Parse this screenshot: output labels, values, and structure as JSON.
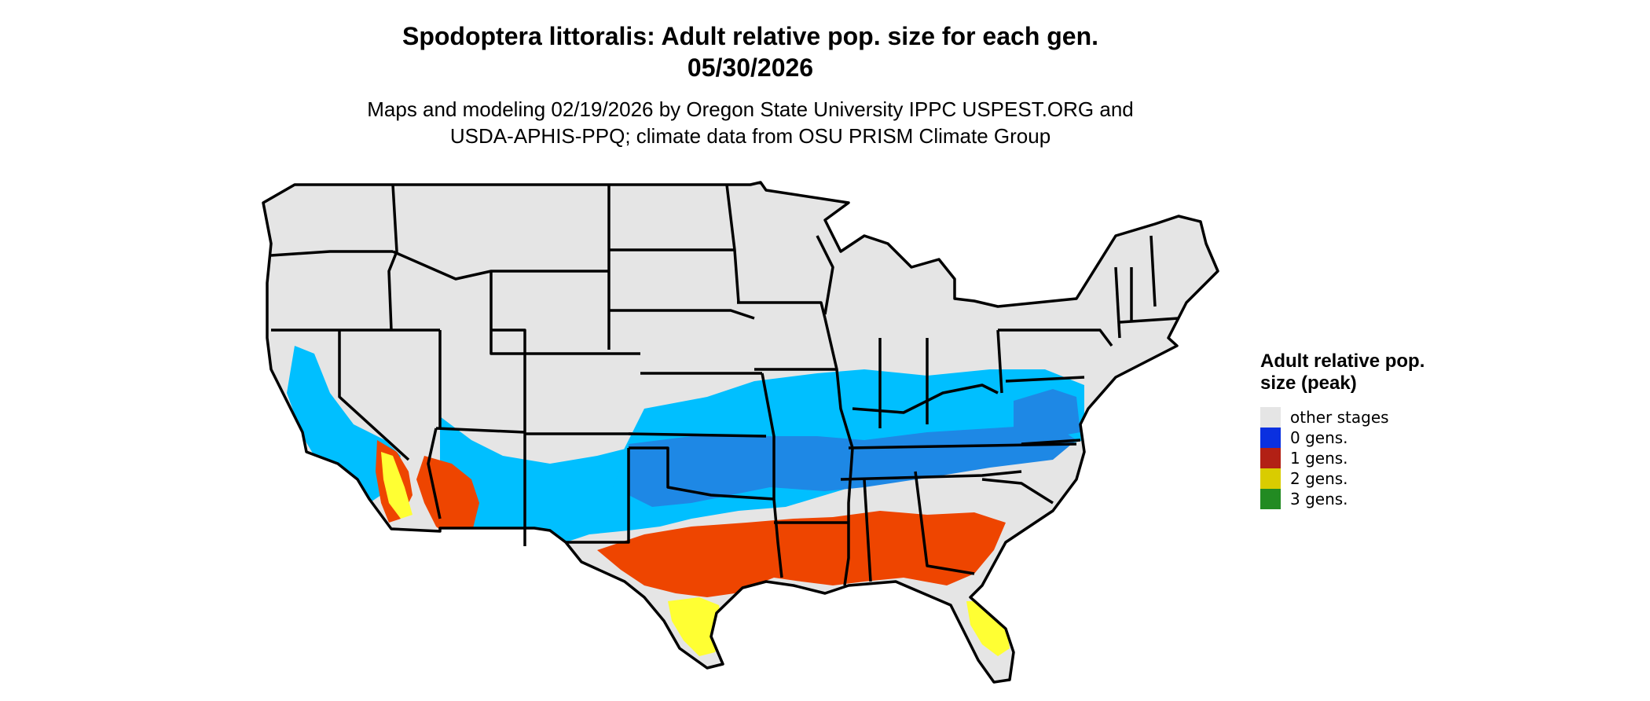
{
  "title": {
    "line1": "Spodoptera littoralis: Adult relative pop. size for each gen.",
    "line2": "05/30/2026"
  },
  "subtitle": {
    "line1": "Maps and modeling 02/19/2026 by Oregon State University IPPC USPEST.ORG and",
    "line2": "USDA-APHIS-PPQ; climate data from OSU PRISM Climate Group"
  },
  "legend": {
    "title": "Adult relative pop. size (peak)",
    "items": [
      {
        "label": "other stages",
        "color": "#e5e5e5"
      },
      {
        "label": "0 gens.",
        "color": "#0a30e0"
      },
      {
        "label": "1 gens.",
        "color": "#b22015"
      },
      {
        "label": "2 gens.",
        "color": "#d9cc00"
      },
      {
        "label": "3 gens.",
        "color": "#228b22"
      }
    ]
  },
  "map": {
    "land_color": "#e5e5e5",
    "border_color": "#000000",
    "zone_colors": {
      "light_blue": "#00bfff",
      "blue": "#1e88e5",
      "orange": "#ee4500",
      "yellow": "#ffff33",
      "green": "#22aa22"
    }
  }
}
